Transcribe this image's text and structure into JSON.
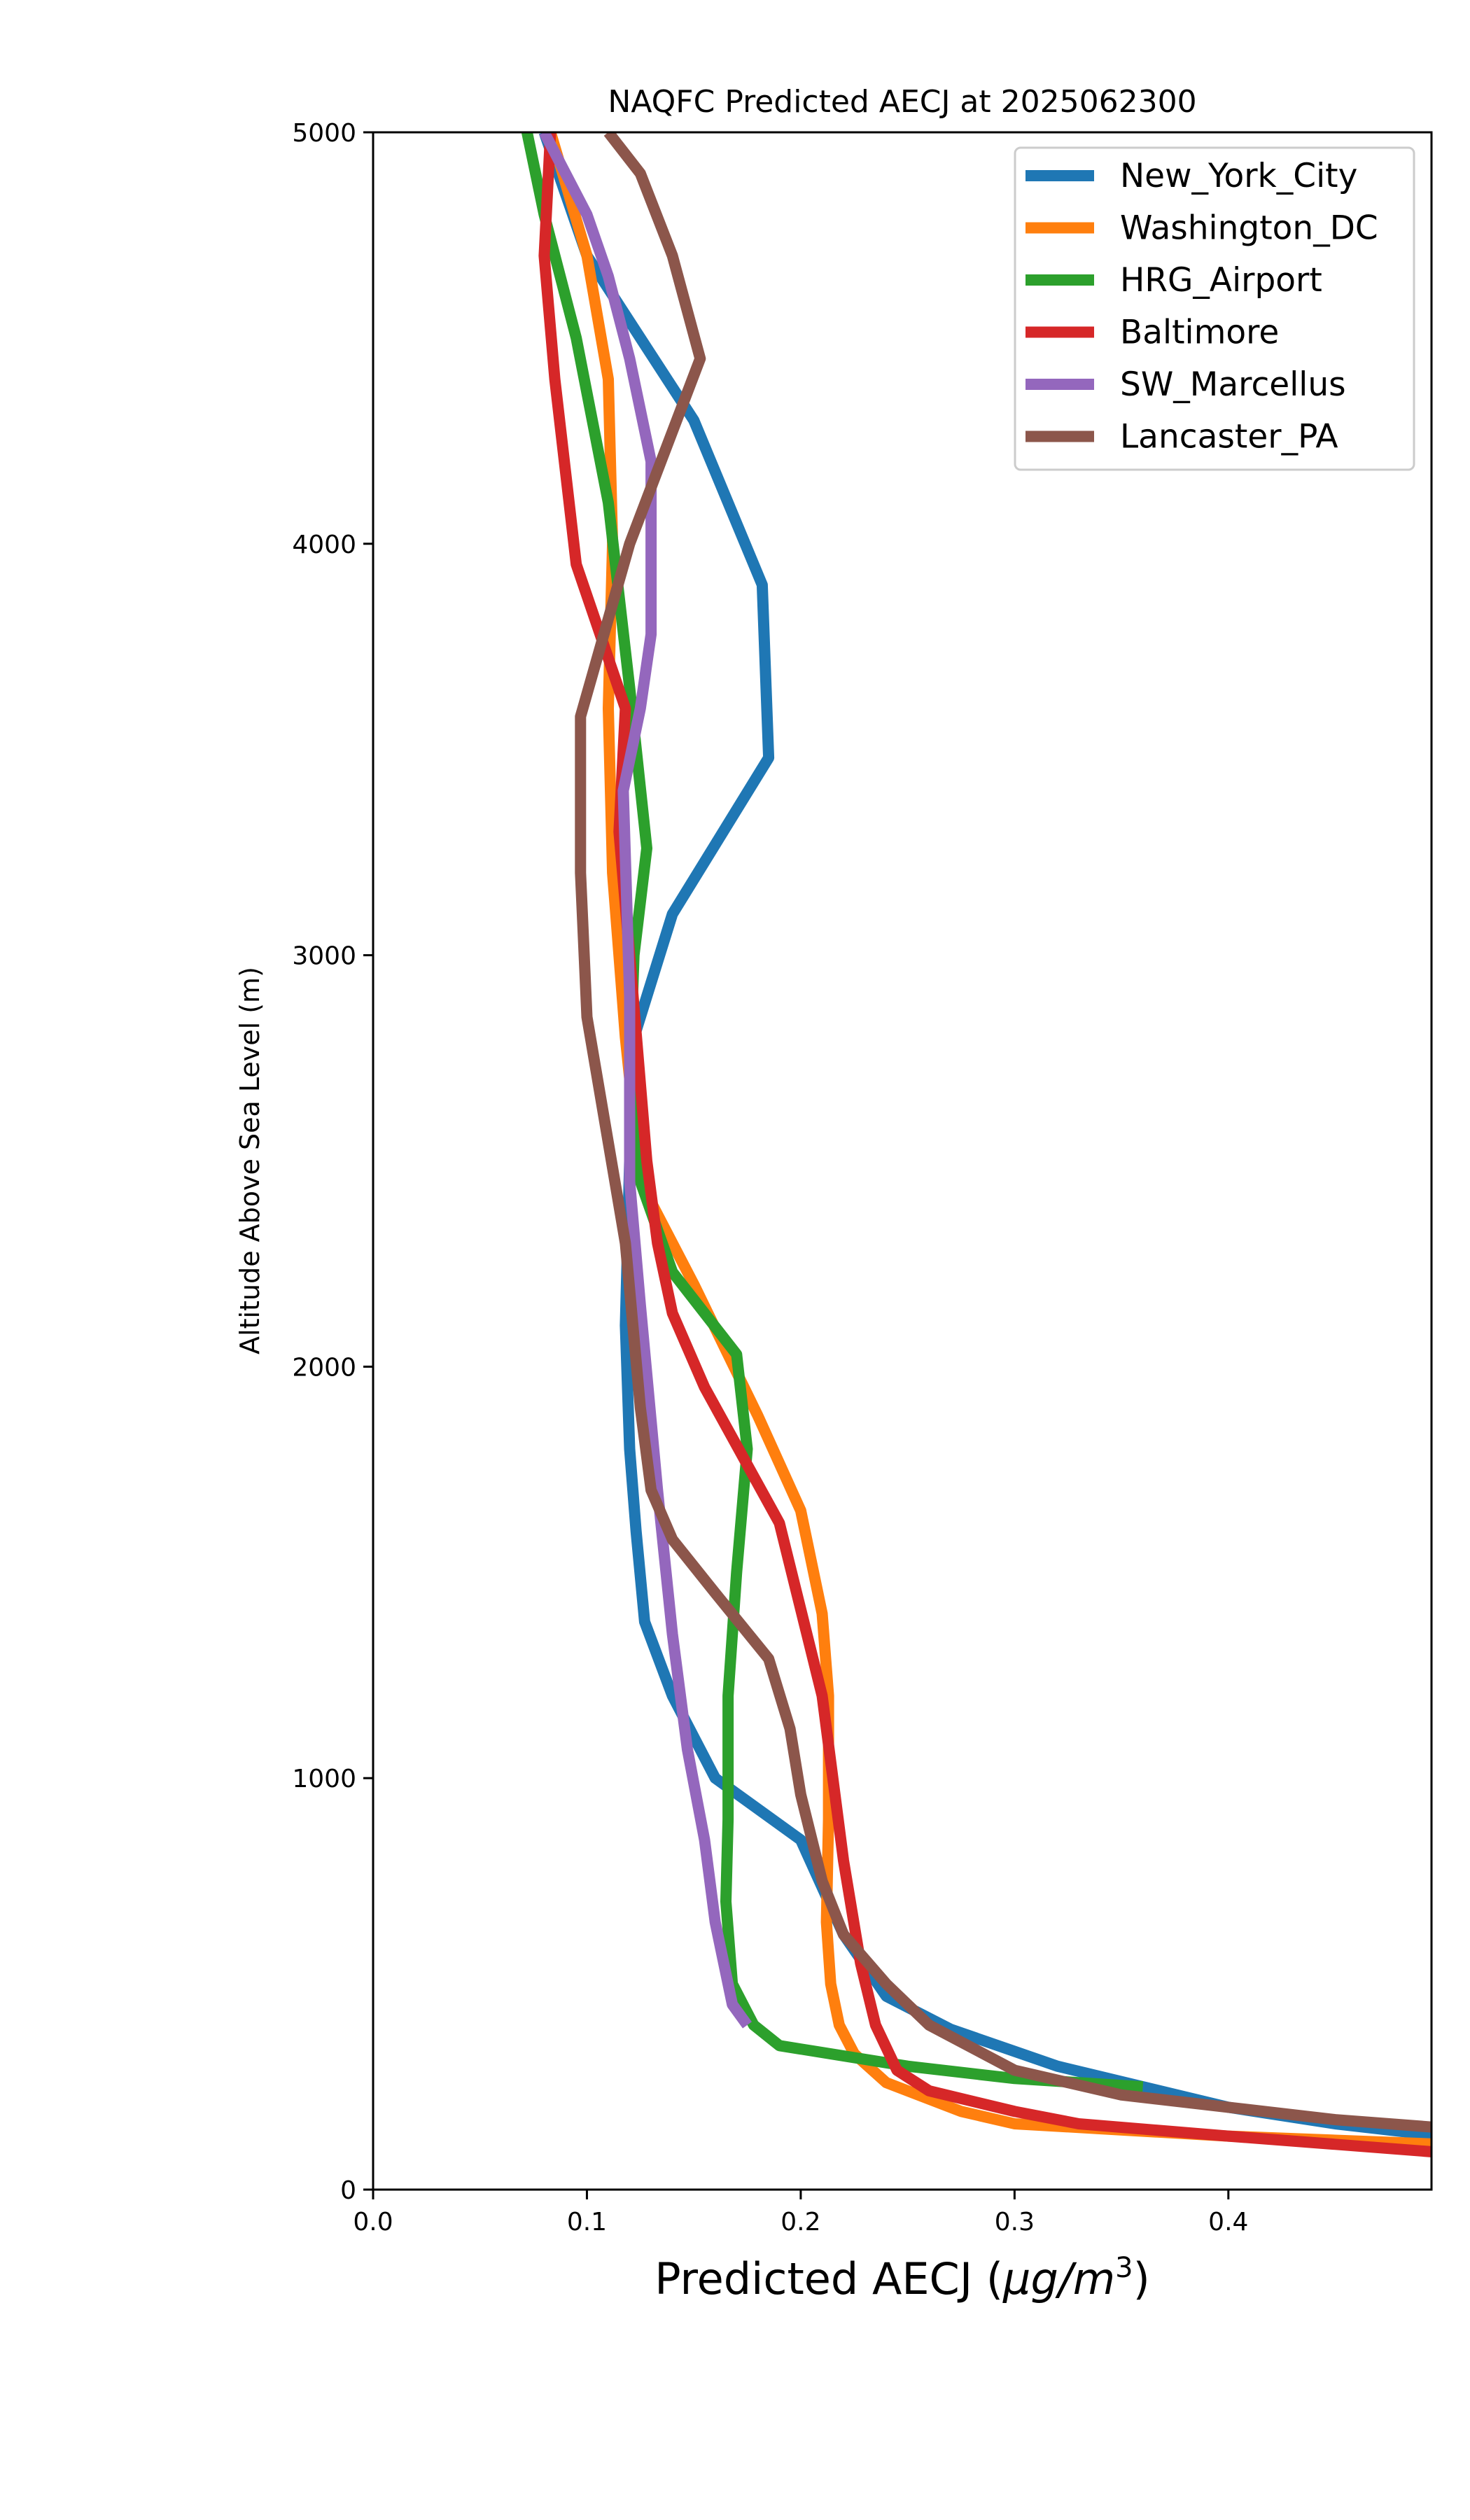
{
  "chart_data": {
    "type": "line",
    "title": "NAQFC Predicted AECJ at 2025062300",
    "xlabel": "Predicted AECJ (",
    "xlabel_unit": "μg/m",
    "xlabel_sup": "3",
    "xlabel_end": ")",
    "ylabel": "Altitude Above Sea Level (m)",
    "xlim": [
      0,
      0.495
    ],
    "ylim": [
      0,
      5000
    ],
    "xticks": [
      {
        "value": 0.0,
        "label": "0.0"
      },
      {
        "value": 0.1,
        "label": "0.1"
      },
      {
        "value": 0.2,
        "label": "0.2"
      },
      {
        "value": 0.3,
        "label": "0.3"
      },
      {
        "value": 0.4,
        "label": "0.4"
      }
    ],
    "yticks": [
      {
        "value": 0,
        "label": "0"
      },
      {
        "value": 1000,
        "label": "1000"
      },
      {
        "value": 2000,
        "label": "2000"
      },
      {
        "value": 3000,
        "label": "3000"
      },
      {
        "value": 4000,
        "label": "4000"
      },
      {
        "value": 5000,
        "label": "5000"
      }
    ],
    "grid": false,
    "legend_position": "top-right",
    "series": [
      {
        "name": "New_York_City",
        "color": "#1f77b4",
        "points": [
          [
            0.5,
            130
          ],
          [
            0.45,
            160
          ],
          [
            0.4,
            200
          ],
          [
            0.32,
            300
          ],
          [
            0.27,
            390
          ],
          [
            0.24,
            470
          ],
          [
            0.22,
            620
          ],
          [
            0.2,
            850
          ],
          [
            0.16,
            1000
          ],
          [
            0.14,
            1200
          ],
          [
            0.127,
            1380
          ],
          [
            0.123,
            1600
          ],
          [
            0.12,
            1800
          ],
          [
            0.118,
            2100
          ],
          [
            0.12,
            2500
          ],
          [
            0.122,
            2800
          ],
          [
            0.14,
            3100
          ],
          [
            0.185,
            3480
          ],
          [
            0.182,
            3900
          ],
          [
            0.15,
            4300
          ],
          [
            0.1,
            4700
          ],
          [
            0.08,
            5000
          ]
        ]
      },
      {
        "name": "Washington_DC",
        "color": "#ff7f0e",
        "points": [
          [
            0.5,
            110
          ],
          [
            0.4,
            130
          ],
          [
            0.3,
            160
          ],
          [
            0.275,
            190
          ],
          [
            0.24,
            260
          ],
          [
            0.225,
            330
          ],
          [
            0.218,
            400
          ],
          [
            0.214,
            500
          ],
          [
            0.212,
            650
          ],
          [
            0.213,
            900
          ],
          [
            0.213,
            1200
          ],
          [
            0.21,
            1400
          ],
          [
            0.2,
            1650
          ],
          [
            0.18,
            1880
          ],
          [
            0.15,
            2200
          ],
          [
            0.125,
            2450
          ],
          [
            0.118,
            2800
          ],
          [
            0.112,
            3200
          ],
          [
            0.11,
            3600
          ],
          [
            0.112,
            4000
          ],
          [
            0.11,
            4400
          ],
          [
            0.1,
            4700
          ],
          [
            0.083,
            5000
          ]
        ]
      },
      {
        "name": "HRG_Airport",
        "color": "#2ca02c",
        "points": [
          [
            0.36,
            250
          ],
          [
            0.3,
            270
          ],
          [
            0.25,
            300
          ],
          [
            0.19,
            350
          ],
          [
            0.178,
            400
          ],
          [
            0.168,
            500
          ],
          [
            0.165,
            700
          ],
          [
            0.166,
            900
          ],
          [
            0.166,
            1200
          ],
          [
            0.17,
            1500
          ],
          [
            0.175,
            1800
          ],
          [
            0.17,
            2030
          ],
          [
            0.14,
            2230
          ],
          [
            0.125,
            2450
          ],
          [
            0.12,
            2700
          ],
          [
            0.122,
            3000
          ],
          [
            0.128,
            3260
          ],
          [
            0.12,
            3650
          ],
          [
            0.11,
            4100
          ],
          [
            0.095,
            4500
          ],
          [
            0.08,
            4800
          ],
          [
            0.072,
            5000
          ]
        ]
      },
      {
        "name": "Baltimore",
        "color": "#d62728",
        "points": [
          [
            0.5,
            90
          ],
          [
            0.45,
            110
          ],
          [
            0.4,
            130
          ],
          [
            0.33,
            160
          ],
          [
            0.3,
            190
          ],
          [
            0.26,
            240
          ],
          [
            0.245,
            290
          ],
          [
            0.235,
            400
          ],
          [
            0.228,
            550
          ],
          [
            0.22,
            800
          ],
          [
            0.21,
            1200
          ],
          [
            0.19,
            1620
          ],
          [
            0.155,
            1950
          ],
          [
            0.14,
            2130
          ],
          [
            0.133,
            2300
          ],
          [
            0.128,
            2500
          ],
          [
            0.12,
            3000
          ],
          [
            0.115,
            3300
          ],
          [
            0.118,
            3600
          ],
          [
            0.095,
            3950
          ],
          [
            0.085,
            4400
          ],
          [
            0.08,
            4700
          ],
          [
            0.083,
            5000
          ]
        ]
      },
      {
        "name": "SW_Marcellus",
        "color": "#9467bd",
        "points": [
          [
            0.175,
            400
          ],
          [
            0.168,
            450
          ],
          [
            0.16,
            650
          ],
          [
            0.155,
            850
          ],
          [
            0.147,
            1070
          ],
          [
            0.14,
            1350
          ],
          [
            0.133,
            1700
          ],
          [
            0.125,
            2150
          ],
          [
            0.12,
            2450
          ],
          [
            0.12,
            2900
          ],
          [
            0.117,
            3400
          ],
          [
            0.125,
            3600
          ],
          [
            0.13,
            3780
          ],
          [
            0.13,
            4200
          ],
          [
            0.12,
            4450
          ],
          [
            0.11,
            4650
          ],
          [
            0.1,
            4800
          ],
          [
            0.08,
            5000
          ]
        ]
      },
      {
        "name": "Lancaster_PA",
        "color": "#8c564b",
        "points": [
          [
            0.5,
            150
          ],
          [
            0.45,
            170
          ],
          [
            0.4,
            200
          ],
          [
            0.35,
            230
          ],
          [
            0.3,
            290
          ],
          [
            0.26,
            400
          ],
          [
            0.24,
            500
          ],
          [
            0.22,
            620
          ],
          [
            0.21,
            750
          ],
          [
            0.2,
            960
          ],
          [
            0.195,
            1120
          ],
          [
            0.185,
            1290
          ],
          [
            0.16,
            1450
          ],
          [
            0.14,
            1580
          ],
          [
            0.13,
            1700
          ],
          [
            0.125,
            1900
          ],
          [
            0.118,
            2300
          ],
          [
            0.1,
            2850
          ],
          [
            0.097,
            3200
          ],
          [
            0.097,
            3580
          ],
          [
            0.12,
            4000
          ],
          [
            0.153,
            4450
          ],
          [
            0.14,
            4700
          ],
          [
            0.125,
            4900
          ],
          [
            0.11,
            5000
          ]
        ]
      }
    ]
  }
}
